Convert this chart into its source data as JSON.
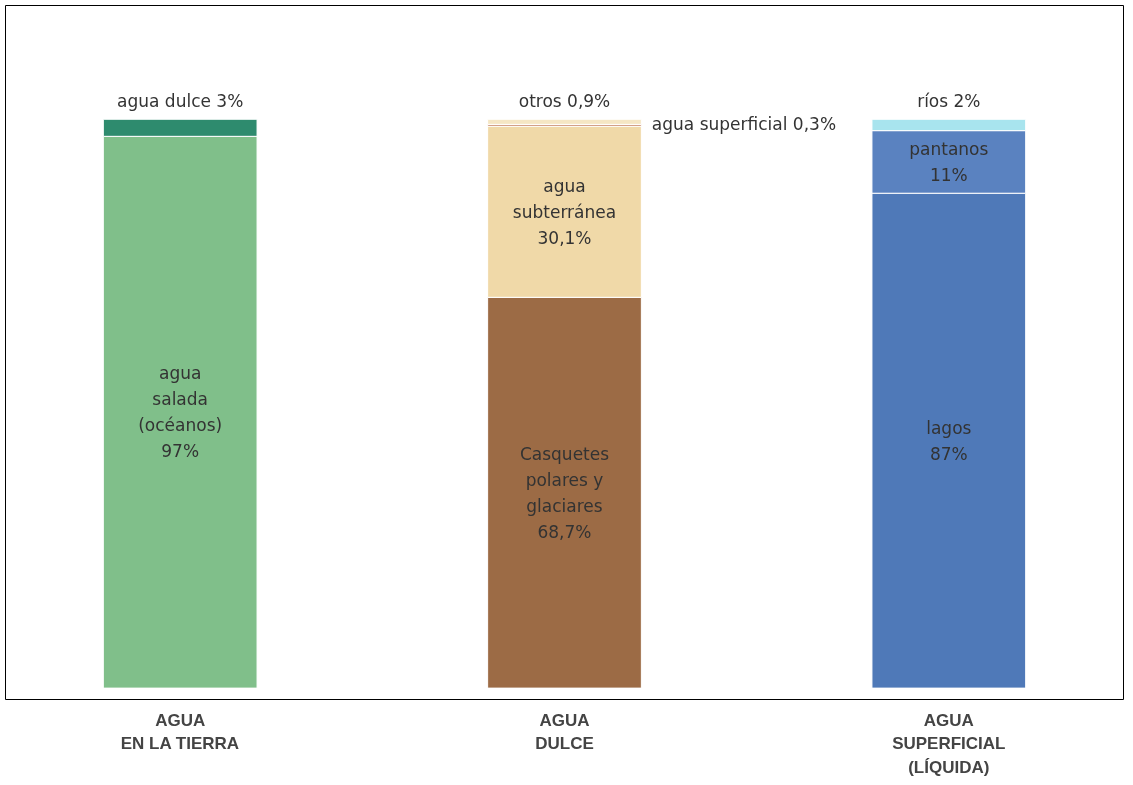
{
  "chart_data": {
    "type": "bar",
    "stacked": true,
    "tick_labels": "x",
    "grid": false,
    "categories": [
      "AGUA\nEN LA TIERRA",
      "AGUA\nDULCE",
      "AGUA\nSUPERFICIAL\n(LÍQUIDA)"
    ],
    "series": [
      {
        "name": "agua\nsalada\n(océanos)",
        "color": "#80bf8a",
        "values": [
          97,
          null,
          null
        ],
        "value_labels": [
          "97%",
          null,
          null
        ]
      },
      {
        "name": "agua dulce",
        "color": "#2e8b6e",
        "values": [
          3,
          null,
          null
        ],
        "value_labels": [
          "3%",
          null,
          null
        ]
      },
      {
        "name": "Casquetes\npolares y\nglaciares",
        "color": "#9c6b45",
        "values": [
          null,
          68.7,
          null
        ],
        "value_labels": [
          null,
          "68,7%",
          null
        ]
      },
      {
        "name": "agua\nsubterránea",
        "color": "#f0d9a8",
        "values": [
          null,
          30.1,
          null
        ],
        "value_labels": [
          null,
          "30,1%",
          null
        ]
      },
      {
        "name": "agua\nsuperficial",
        "color": "#b5603a",
        "values": [
          null,
          0.3,
          null
        ],
        "value_labels": [
          null,
          "0,3%",
          null
        ]
      },
      {
        "name": "otros",
        "color": "#f5e6c4",
        "values": [
          null,
          0.9,
          null
        ],
        "value_labels": [
          null,
          "0,9%",
          null
        ]
      },
      {
        "name": "lagos",
        "color": "#4f79b8",
        "values": [
          null,
          null,
          87
        ],
        "value_labels": [
          null,
          null,
          "87%"
        ]
      },
      {
        "name": "pantanos",
        "color": "#5a82c0",
        "values": [
          null,
          null,
          11
        ],
        "value_labels": [
          null,
          null,
          "11%"
        ]
      },
      {
        "name": "ríos",
        "color": "#a8e4ee",
        "values": [
          null,
          null,
          2
        ],
        "value_labels": [
          null,
          null,
          "2%"
        ]
      }
    ]
  }
}
